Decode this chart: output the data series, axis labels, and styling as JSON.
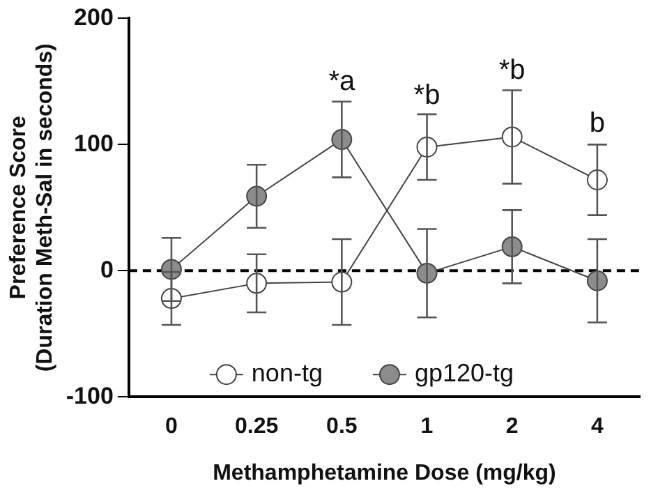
{
  "chart_data": {
    "type": "line",
    "xlabel": "Methamphetamine Dose (mg/kg)",
    "ylabel": "Preference Score\n(Duration Meth-Sal in seconds)",
    "categories": [
      "0",
      "0.25",
      "0.5",
      "1",
      "2",
      "4"
    ],
    "series": [
      {
        "name": "non-tg",
        "color": "#ffffff",
        "values": [
          -22,
          -10,
          -9,
          98,
          106,
          72
        ],
        "errors": [
          21,
          23,
          34,
          26,
          37,
          28
        ]
      },
      {
        "name": "gp120-tg",
        "color": "#8c8c8c",
        "values": [
          1,
          59,
          104,
          -2,
          19,
          -8
        ],
        "errors": [
          25,
          25,
          30,
          35,
          29,
          33
        ]
      }
    ],
    "ylim": [
      -100,
      200
    ],
    "yticks": [
      -100,
      0,
      100,
      200
    ],
    "ref_lines": [
      {
        "axis": "y",
        "value": 0,
        "line_style": "dashed"
      }
    ],
    "annotations": [
      {
        "text": "*a",
        "x": "0.5",
        "y": 134
      },
      {
        "text": "*b",
        "x": "1",
        "y": 123
      },
      {
        "text": "*b",
        "x": "2",
        "y": 143
      },
      {
        "text": "b",
        "x": "4",
        "y": 101
      }
    ],
    "marker": "circle",
    "line_style": "solid",
    "grid": false,
    "legend": "bottom"
  }
}
